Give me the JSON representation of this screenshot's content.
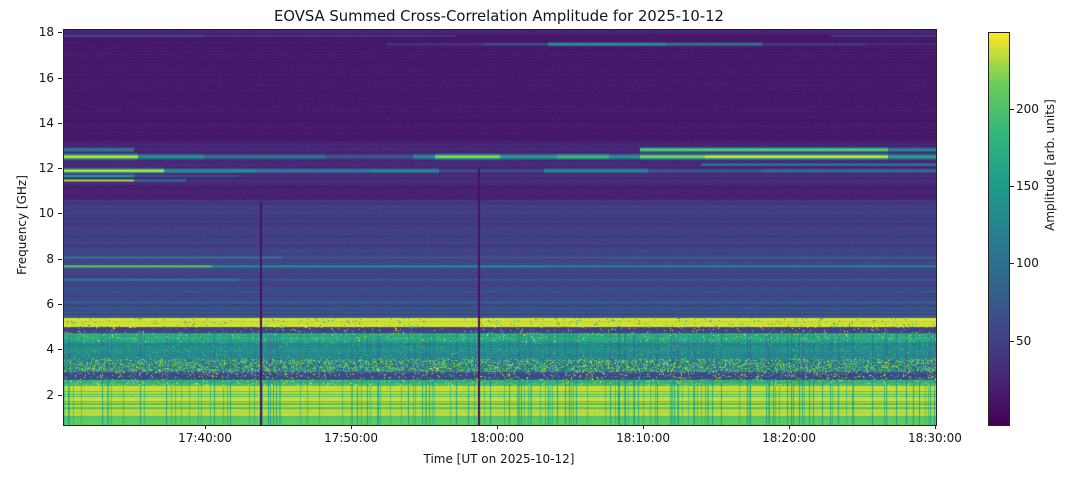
{
  "figure": {
    "background": "#ffffff",
    "axis_color": "#222222"
  },
  "chart_data": {
    "type": "heatmap",
    "title": "EOVSA Summed Cross-Correlation Amplitude for 2025-10-12",
    "xlabel": "Time [UT on 2025-10-12]",
    "ylabel": "Frequency [GHz]",
    "colorbar_label": "Amplitude [arb. units]",
    "colormap": "viridis",
    "x_start": "17:30:16",
    "x_end": "18:30:00",
    "x_ticks": [
      "17:40:00",
      "17:50:00",
      "18:00:00",
      "18:10:00",
      "18:20:00",
      "18:30:00"
    ],
    "y_range_ghz": [
      0.7,
      18.15
    ],
    "y_ticks": [
      2,
      4,
      6,
      8,
      10,
      12,
      14,
      16,
      18
    ],
    "amp_range": [
      -4,
      250
    ],
    "colorbar_ticks": [
      50,
      100,
      150,
      200
    ],
    "viridis_stops": [
      [
        0.0,
        "#440154"
      ],
      [
        0.125,
        "#482878"
      ],
      [
        0.25,
        "#3e4989"
      ],
      [
        0.375,
        "#31688e"
      ],
      [
        0.5,
        "#26828e"
      ],
      [
        0.625,
        "#1f9e89"
      ],
      [
        0.75,
        "#35b779"
      ],
      [
        0.875,
        "#6ece58"
      ],
      [
        1.0,
        "#fde725"
      ]
    ],
    "bands": [
      {
        "f": [
          17.96,
          18.15
        ],
        "base": 25,
        "stripe": 6
      },
      {
        "f": [
          13.25,
          17.96
        ],
        "base": 16,
        "stripe": 4
      },
      {
        "f": [
          11.35,
          13.25
        ],
        "base": 26,
        "stripe": 6
      },
      {
        "f": [
          10.62,
          11.35
        ],
        "base": 23,
        "stripe": 5
      },
      {
        "f": [
          8.45,
          10.62
        ],
        "base": 48,
        "stripe": 10
      },
      {
        "f": [
          6.4,
          8.45
        ],
        "base": 58,
        "stripe": 12
      },
      {
        "f": [
          5.42,
          6.4
        ],
        "base": 66,
        "stripe": 22
      },
      {
        "f": [
          5.02,
          5.42
        ],
        "base": 238,
        "stripe": 8,
        "speckle": [
          0.03,
          150
        ]
      },
      {
        "f": [
          4.78,
          5.02
        ],
        "base": 58,
        "stripe": 10,
        "speckle": [
          0.05,
          245
        ]
      },
      {
        "f": [
          4.38,
          4.78
        ],
        "base": 172,
        "stripe": 18,
        "speckle": [
          0.08,
          235
        ],
        "vstripes": true
      },
      {
        "f": [
          3.62,
          4.38
        ],
        "base": 128,
        "stripe": 22,
        "speckle": [
          0.06,
          200
        ],
        "vstripes": true
      },
      {
        "f": [
          3.02,
          3.62
        ],
        "base": 105,
        "stripe": 15,
        "speckle": [
          0.45,
          220
        ],
        "vstripes": true
      },
      {
        "f": [
          2.68,
          3.02
        ],
        "base": 62,
        "stripe": 8,
        "speckle": [
          0.1,
          240
        ]
      },
      {
        "f": [
          2.42,
          2.68
        ],
        "base": 185,
        "stripe": 15,
        "speckle": [
          0.12,
          240
        ],
        "vstripes": true
      },
      {
        "f": [
          1.08,
          2.42
        ],
        "base": 237,
        "stripe": 6,
        "vstripes": true,
        "rowdrop": [
          0.25,
          0.84
        ]
      },
      {
        "f": [
          0.7,
          1.08
        ],
        "base": 207,
        "stripe": 8,
        "vstripes": true
      }
    ],
    "streaks": [
      {
        "f": [
          12.38,
          12.72
        ],
        "soft": true,
        "segs": [
          [
            0,
            0.085,
            250
          ],
          [
            0.085,
            0.16,
            150
          ],
          [
            0.16,
            0.3,
            110
          ],
          [
            0.3,
            0.4,
            80
          ],
          [
            0.4,
            0.425,
            140
          ],
          [
            0.425,
            0.5,
            235
          ],
          [
            0.5,
            0.565,
            160
          ],
          [
            0.565,
            0.625,
            200
          ],
          [
            0.625,
            0.66,
            150
          ],
          [
            0.66,
            0.735,
            230
          ],
          [
            0.735,
            0.945,
            252
          ],
          [
            0.945,
            1.0,
            165
          ]
        ]
      },
      {
        "f": [
          12.72,
          13.0
        ],
        "soft": true,
        "segs": [
          [
            0,
            0.08,
            120
          ],
          [
            0.66,
            0.945,
            225
          ],
          [
            0.945,
            1.0,
            135
          ]
        ]
      },
      {
        "f": [
          12.1,
          12.3
        ],
        "soft": true,
        "segs": [
          [
            0.73,
            1.0,
            115
          ]
        ]
      },
      {
        "f": [
          11.78,
          12.08
        ],
        "soft": true,
        "segs": [
          [
            0,
            0.115,
            250
          ],
          [
            0.115,
            0.22,
            150
          ],
          [
            0.22,
            0.35,
            120
          ],
          [
            0.35,
            0.43,
            140
          ],
          [
            0.43,
            0.55,
            70
          ],
          [
            0.55,
            0.67,
            135
          ],
          [
            0.67,
            0.8,
            80
          ],
          [
            0.8,
            1.0,
            100
          ]
        ]
      },
      {
        "f": [
          11.62,
          11.78
        ],
        "soft": true,
        "segs": [
          [
            0,
            0.08,
            180
          ],
          [
            0.08,
            0.2,
            80
          ],
          [
            0.2,
            1.0,
            45
          ]
        ]
      },
      {
        "f": [
          11.42,
          11.58
        ],
        "soft": true,
        "segs": [
          [
            0,
            0.08,
            245
          ],
          [
            0.08,
            0.14,
            110
          ],
          [
            0.14,
            1.0,
            40
          ]
        ]
      },
      {
        "f": [
          17.42,
          17.62
        ],
        "soft": true,
        "segs": [
          [
            0.37,
            0.48,
            45
          ],
          [
            0.48,
            0.555,
            70
          ],
          [
            0.555,
            0.69,
            160
          ],
          [
            0.69,
            0.8,
            120
          ],
          [
            0.8,
            0.92,
            50
          ],
          [
            0.92,
            1.0,
            35
          ]
        ]
      },
      {
        "f": [
          17.82,
          17.96
        ],
        "soft": true,
        "segs": [
          [
            0,
            0.16,
            80
          ],
          [
            0.16,
            0.45,
            55
          ],
          [
            0.88,
            1.0,
            60
          ]
        ]
      },
      {
        "f": [
          8.02,
          8.18
        ],
        "soft": true,
        "segs": [
          [
            0,
            0.25,
            135
          ],
          [
            0.25,
            0.62,
            95
          ],
          [
            0.62,
            1.0,
            105
          ]
        ]
      },
      {
        "f": [
          7.62,
          7.8
        ],
        "soft": true,
        "segs": [
          [
            0,
            0.17,
            225
          ],
          [
            0.17,
            0.55,
            150
          ],
          [
            0.55,
            1.0,
            135
          ]
        ]
      },
      {
        "f": [
          7.02,
          7.2
        ],
        "soft": true,
        "segs": [
          [
            0,
            0.2,
            130
          ],
          [
            0.2,
            1.0,
            85
          ]
        ]
      },
      {
        "f": [
          6.55,
          6.7
        ],
        "soft": true,
        "segs": [
          [
            0,
            1.0,
            78
          ]
        ]
      }
    ],
    "gaps": [
      {
        "time_frac": 0.226,
        "f_top_ghz": 10.55
      },
      {
        "time_frac": 0.476,
        "f_top_ghz": 12.05
      }
    ]
  }
}
